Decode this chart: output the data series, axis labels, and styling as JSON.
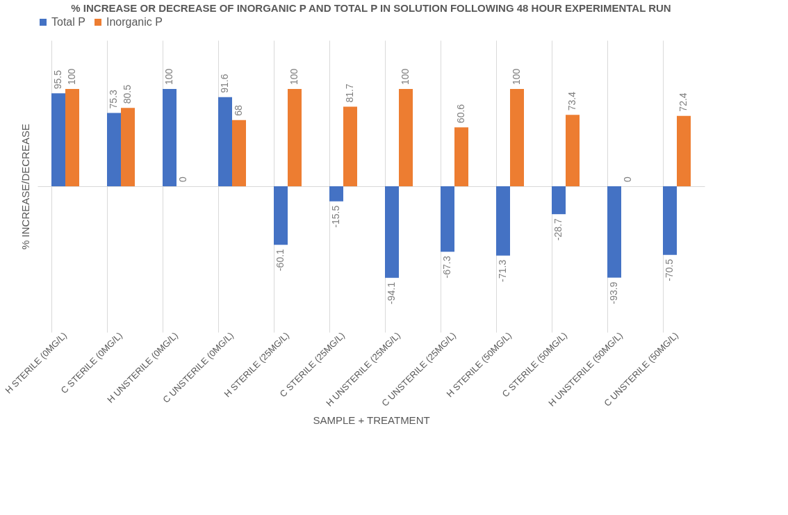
{
  "chart_data": {
    "type": "bar",
    "title": "% INCREASE OR DECREASE OF INORGANIC P AND TOTAL P IN SOLUTION FOLLOWING 48 HOUR EXPERIMENTAL RUN",
    "xlabel": "SAMPLE + TREATMENT",
    "ylabel": "% INCREASE/DECREASE",
    "categories": [
      "H STERILE (0MG/L)",
      "C STERILE (0MG/L)",
      "H UNSTERILE (0MG/L)",
      "C UNSTERILE (0MG/L)",
      "H STERILE (25MG/L)",
      "C STERILE (25MG/L)",
      "H UNSTERILE (25MG/L)",
      "C UNSTERILE (25MG/L)",
      "H STERILE (50MG/L)",
      "C STERILE (50MG/L)",
      "H UNSTERILE (50MG/L)",
      "C UNSTERILE (50MG/L)"
    ],
    "series": [
      {
        "name": "Total P",
        "color": "#4472c4",
        "values": [
          95.5,
          75.3,
          100,
          91.6,
          -60.1,
          -15.5,
          -94.1,
          -67.3,
          -71.3,
          -28.7,
          -93.9,
          -70.5
        ]
      },
      {
        "name": "Inorganic P",
        "color": "#ed7d31",
        "values": [
          100,
          80.5,
          0,
          68,
          100,
          81.7,
          100,
          60.6,
          100,
          73.4,
          0,
          72.4
        ]
      }
    ],
    "ylim": [
      -150,
      150
    ],
    "yticks": [
      {
        "value": 0,
        "label": null
      }
    ],
    "tick_labels": "x",
    "grid": true,
    "legend": "top",
    "data_labels": true
  }
}
